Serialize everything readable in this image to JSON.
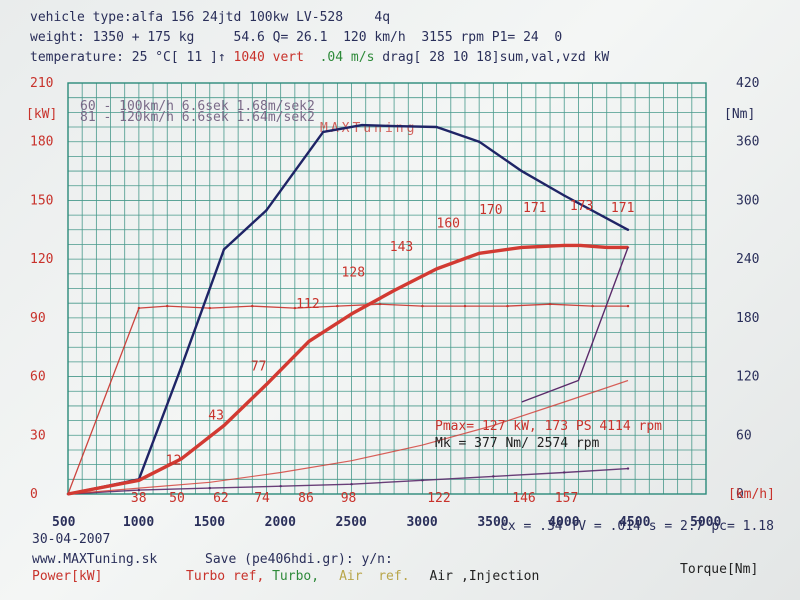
{
  "header": {
    "line1": "vehicle type:alfa 156 24jtd 100kw LV-528    4q",
    "line2": "weight: 1350 + 175 kg     54.6 Q= 26.1  120 km/h  3155 rpm P1= 24  0",
    "line3_a": "temperature: 25 °C[ 11 ]↑ ",
    "line3_b": "1040 vert",
    "line3_c": "  .04 m/s",
    "line3_d": " drag[ 28 10 18]sum,val,vzd kW"
  },
  "watermark": "MAXTuning",
  "accel_note": {
    "line1": "60 - 100km/h  6.6sek 1.68m/sek2",
    "line2": "81 - 120km/h  6.6sek 1.64m/sek2"
  },
  "results": {
    "pmax": "Pmax= 127 kW, 173 PS  4114 rpm",
    "mk": "Mk   = 377 Nm/ 2574 rpm"
  },
  "coeffs": "cx = .34  fV = .014  s = 2.7 pc= 1.18",
  "date": "30-04-2007",
  "footer": {
    "site": "www.MAXTuning.sk",
    "save": "Save (pe406hdi.gr): y/n:",
    "power": "Power[kW]",
    "turbo_ref": "Turbo ref,",
    "turbo": " Turbo,",
    "air_ref": "Air  ref.",
    "air": "Air",
    "injection": ",Injection",
    "torque": "Torque[Nm]"
  },
  "colors": {
    "power": "#d23a32",
    "torque": "#1f2466",
    "grid": "#2b8a7a",
    "turbo_ref": "#c8322b",
    "air": "#5a2a6a"
  },
  "chart_data": {
    "type": "line",
    "xlabel": "",
    "x_unit_label": "[km/h]",
    "ylabel_left": "[kW]",
    "ylabel_right": "[Nm]",
    "xlim": [
      500,
      5000
    ],
    "ylim_left": [
      0,
      210
    ],
    "ylim_right": [
      0,
      420
    ],
    "x_ticks": [
      500,
      1000,
      1500,
      2000,
      2500,
      3000,
      3500,
      4000,
      4500,
      5000
    ],
    "y_ticks_left": [
      0,
      30,
      60,
      90,
      120,
      150,
      180,
      210
    ],
    "y_ticks_right": [
      0,
      60,
      120,
      180,
      240,
      300,
      360,
      420
    ],
    "speed_labels": [
      {
        "rpm": 1000,
        "label": "38"
      },
      {
        "rpm": 1270,
        "label": "50"
      },
      {
        "rpm": 1580,
        "label": "62"
      },
      {
        "rpm": 1870,
        "label": "74"
      },
      {
        "rpm": 2180,
        "label": "86"
      },
      {
        "rpm": 2480,
        "label": "98"
      },
      {
        "rpm": 3090,
        "label": "122"
      },
      {
        "rpm": 3690,
        "label": "146"
      },
      {
        "rpm": 3990,
        "label": "157"
      }
    ],
    "ps_labels": [
      {
        "rpm": 1260,
        "kw": 12,
        "label": "12"
      },
      {
        "rpm": 1560,
        "kw": 35,
        "label": "43"
      },
      {
        "rpm": 1860,
        "kw": 60,
        "label": "77"
      },
      {
        "rpm": 2180,
        "kw": 92,
        "label": "112"
      },
      {
        "rpm": 2500,
        "kw": 108,
        "label": "128"
      },
      {
        "rpm": 2840,
        "kw": 121,
        "label": "143"
      },
      {
        "rpm": 3170,
        "kw": 133,
        "label": "160"
      },
      {
        "rpm": 3470,
        "kw": 140,
        "label": "170"
      },
      {
        "rpm": 3780,
        "kw": 141,
        "label": "171"
      },
      {
        "rpm": 4110,
        "kw": 142,
        "label": "173"
      },
      {
        "rpm": 4400,
        "kw": 141,
        "label": "171"
      }
    ],
    "series": [
      {
        "name": "Power[kW]",
        "axis": "left",
        "x": [
          500,
          1000,
          1300,
          1600,
          1900,
          2200,
          2500,
          2800,
          3100,
          3400,
          3700,
          4000,
          4114,
          4300,
          4450
        ],
        "y": [
          0,
          7,
          18,
          35,
          56,
          78,
          92,
          104,
          115,
          123,
          126,
          127,
          127,
          126,
          126
        ]
      },
      {
        "name": "Torque[Nm]",
        "axis": "right",
        "x": [
          500,
          1000,
          1300,
          1600,
          1900,
          2300,
          2574,
          2800,
          3100,
          3400,
          3700,
          4000,
          4450
        ],
        "y": [
          0,
          15,
          130,
          250,
          290,
          370,
          377,
          376,
          375,
          360,
          330,
          305,
          270
        ]
      },
      {
        "name": "Turbo ref,",
        "axis": "left",
        "x": [
          500,
          1000,
          1200,
          1500,
          1800,
          2100,
          2400,
          2700,
          3000,
          3300,
          3600,
          3900,
          4200,
          4450
        ],
        "y": [
          0,
          95,
          96,
          95,
          96,
          95,
          96,
          97,
          96,
          96,
          96,
          97,
          96,
          96
        ]
      },
      {
        "name": "Air",
        "axis": "left",
        "x": [
          500,
          1000,
          1500,
          2000,
          2500,
          3000,
          3500,
          4000,
          4450
        ],
        "y": [
          0,
          2,
          3,
          4,
          5,
          7,
          9,
          11,
          13
        ]
      }
    ],
    "coastdown": {
      "x": [
        500,
        1000,
        1500,
        2000,
        2500,
        3000,
        3500,
        4000,
        4450
      ],
      "y": [
        0,
        3,
        6,
        11,
        17,
        25,
        35,
        47,
        58
      ]
    },
    "grid": true
  }
}
